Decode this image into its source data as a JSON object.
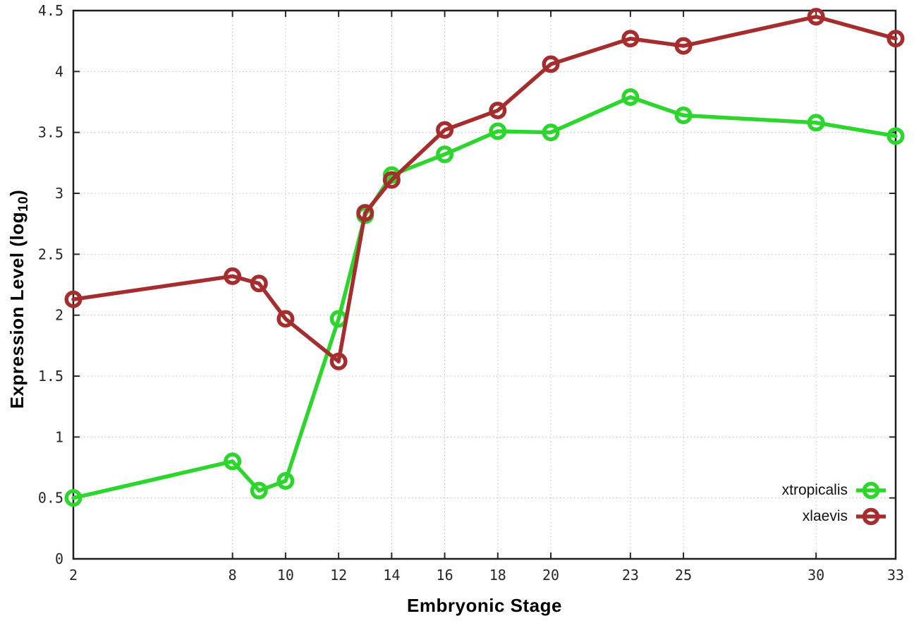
{
  "chart_data": {
    "type": "line",
    "xlabel": "Embryonic Stage",
    "ylabel_prefix": "Expression Level (log",
    "ylabel_sub": "10",
    "ylabel_suffix": ")",
    "xlim": [
      2,
      33
    ],
    "ylim": [
      0,
      4.5
    ],
    "grid": true,
    "legend_position": "bottom-right",
    "marker_style": "open-circle",
    "xticks": [
      2,
      8,
      10,
      12,
      14,
      16,
      18,
      20,
      23,
      25,
      30,
      33
    ],
    "yticks": [
      0,
      0.5,
      1,
      1.5,
      2,
      2.5,
      3,
      3.5,
      4,
      4.5
    ],
    "ytick_labels": [
      "0",
      "0.5",
      "1",
      "1.5",
      "2",
      "2.5",
      "3",
      "3.5",
      "4",
      "4.5"
    ],
    "series": [
      {
        "name": "xtropicalis",
        "color": "#2dd62d",
        "points": [
          [
            2,
            0.5
          ],
          [
            8,
            0.8
          ],
          [
            9,
            0.56
          ],
          [
            10,
            0.64
          ],
          [
            12,
            1.97
          ],
          [
            13,
            2.82
          ],
          [
            14,
            3.15
          ],
          [
            16,
            3.32
          ],
          [
            18,
            3.51
          ],
          [
            20,
            3.5
          ],
          [
            23,
            3.79
          ],
          [
            25,
            3.64
          ],
          [
            30,
            3.58
          ],
          [
            33,
            3.47
          ]
        ]
      },
      {
        "name": "xlaevis",
        "color": "#a52d2d",
        "points": [
          [
            2,
            2.13
          ],
          [
            8,
            2.32
          ],
          [
            9,
            2.26
          ],
          [
            10,
            1.97
          ],
          [
            12,
            1.62
          ],
          [
            13,
            2.84
          ],
          [
            14,
            3.11
          ],
          [
            16,
            3.52
          ],
          [
            18,
            3.68
          ],
          [
            20,
            4.06
          ],
          [
            23,
            4.27
          ],
          [
            25,
            4.21
          ],
          [
            30,
            4.45
          ],
          [
            33,
            4.27
          ]
        ]
      }
    ]
  }
}
